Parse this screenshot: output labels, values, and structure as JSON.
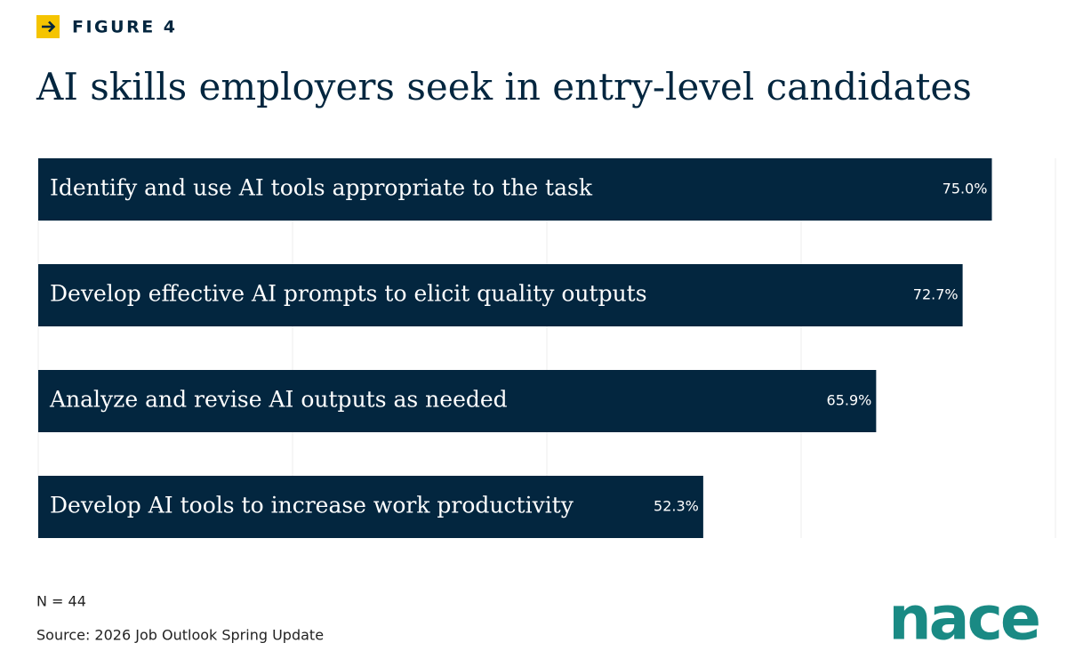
{
  "chart_data": {
    "type": "barh",
    "figure_label": "FIGURE 4",
    "title": "AI skills employers seek in entry-level candidates",
    "categories": [
      "Identify and use AI tools appropriate to the task",
      "Develop effective AI prompts to elicit quality outputs",
      "Analyze and revise AI outputs as needed",
      "Develop AI tools to increase work productivity"
    ],
    "values": [
      75.0,
      72.7,
      65.9,
      52.3
    ],
    "value_labels": [
      "75.0%",
      "72.7%",
      "65.9%",
      "52.3%"
    ],
    "color": "#03263f",
    "xlim": [
      0,
      80
    ],
    "xticks": [
      0,
      20,
      40,
      60,
      80
    ],
    "grid": true,
    "notes": [
      "N = 44",
      "Source: 2026 Job Outlook Spring Update"
    ]
  },
  "logo": "nace"
}
